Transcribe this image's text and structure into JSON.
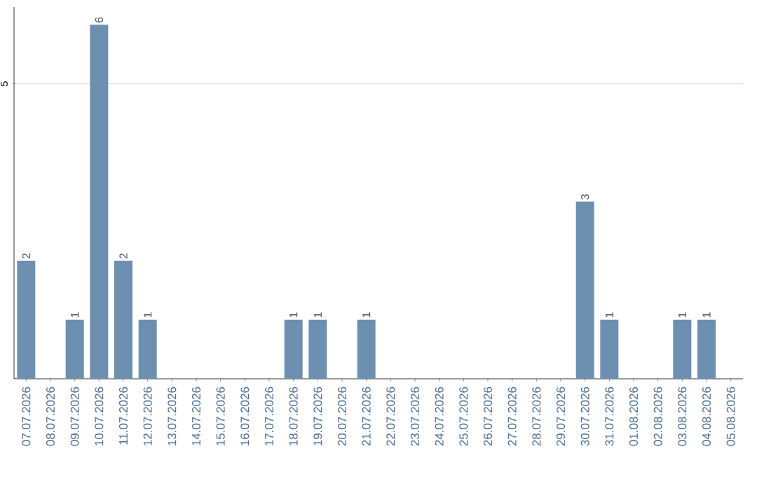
{
  "chart_data": {
    "type": "bar",
    "categories": [
      "07.07.2026",
      "08.07.2026",
      "09.07.2026",
      "10.07.2026",
      "11.07.2026",
      "12.07.2026",
      "13.07.2026",
      "14.07.2026",
      "15.07.2026",
      "16.07.2026",
      "17.07.2026",
      "18.07.2026",
      "19.07.2026",
      "20.07.2026",
      "21.07.2026",
      "22.07.2026",
      "23.07.2026",
      "24.07.2026",
      "25.07.2026",
      "26.07.2026",
      "27.07.2026",
      "28.07.2026",
      "29.07.2026",
      "30.07.2026",
      "31.07.2026",
      "01.08.2026",
      "02.08.2026",
      "03.08.2026",
      "04.08.2026",
      "05.08.2026"
    ],
    "values": [
      2,
      0,
      1,
      6,
      2,
      1,
      0,
      0,
      0,
      0,
      0,
      1,
      1,
      0,
      1,
      0,
      0,
      0,
      0,
      0,
      0,
      0,
      0,
      3,
      1,
      0,
      0,
      1,
      1,
      0
    ],
    "value_labels": [
      "2",
      null,
      "1",
      "6",
      "2",
      "1",
      null,
      null,
      null,
      null,
      null,
      "1",
      "1",
      null,
      "1",
      null,
      null,
      null,
      null,
      null,
      null,
      null,
      null,
      "3",
      "1",
      null,
      null,
      "1",
      "1",
      null
    ],
    "color": "#6d8fb0",
    "ylim": [
      0,
      6.3
    ],
    "yticks": [
      5
    ],
    "grid": "y"
  }
}
